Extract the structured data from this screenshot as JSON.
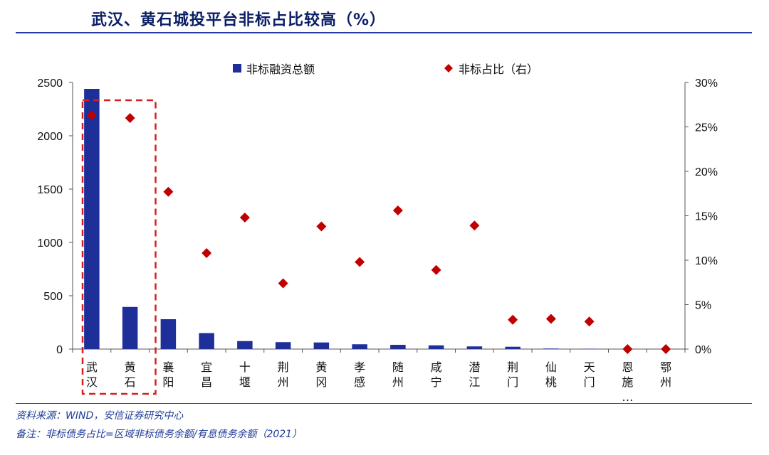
{
  "header": {
    "title": "武汉、黄石城投平台非标占比较高（%）"
  },
  "footer": {
    "source": "资料来源：WIND，安信证券研究中心",
    "note": "备注：非标债务占比=区域非标债务余额/有息债务余额（2021）"
  },
  "colors": {
    "bar": "#1f2f9a",
    "marker": "#c00000",
    "highlight_box": "#d42020",
    "rule": "#1f3d99"
  },
  "chart_data": {
    "type": "bar",
    "categories": [
      "武汉",
      "黄石",
      "襄阳",
      "宜昌",
      "十堰",
      "荆州",
      "黄冈",
      "孝感",
      "随州",
      "咸宁",
      "潜江",
      "荆门",
      "仙桃",
      "天门",
      "恩施…",
      "鄂州"
    ],
    "category_lines": [
      [
        "武",
        "汉"
      ],
      [
        "黄",
        "石"
      ],
      [
        "襄",
        "阳"
      ],
      [
        "宜",
        "昌"
      ],
      [
        "十",
        "堰"
      ],
      [
        "荆",
        "州"
      ],
      [
        "黄",
        "冈"
      ],
      [
        "孝",
        "感"
      ],
      [
        "随",
        "州"
      ],
      [
        "咸",
        "宁"
      ],
      [
        "潜",
        "江"
      ],
      [
        "荆",
        "门"
      ],
      [
        "仙",
        "桃"
      ],
      [
        "天",
        "门"
      ],
      [
        "恩",
        "施",
        "…"
      ],
      [
        "鄂",
        "州"
      ]
    ],
    "series": [
      {
        "name": "非标融资总额",
        "kind": "bar",
        "axis": "left",
        "values": [
          2440,
          395,
          280,
          150,
          75,
          65,
          62,
          45,
          40,
          35,
          25,
          22,
          5,
          3,
          0,
          0
        ]
      },
      {
        "name": "非标占比（右）",
        "kind": "scatter",
        "axis": "right",
        "values": [
          26.3,
          26.0,
          17.7,
          10.8,
          14.8,
          7.4,
          13.8,
          9.8,
          15.6,
          8.9,
          13.9,
          3.3,
          3.4,
          3.1,
          0.0,
          0.0
        ]
      }
    ],
    "y_left": {
      "min": 0,
      "max": 2500,
      "ticks": [
        "0",
        "500",
        "1000",
        "1500",
        "2000",
        "2500"
      ]
    },
    "y_right": {
      "min": 0,
      "max": 30,
      "ticks": [
        "0%",
        "5%",
        "10%",
        "15%",
        "20%",
        "25%",
        "30%"
      ]
    },
    "legend_position": "top",
    "highlight_categories": [
      "武汉",
      "黄石"
    ],
    "grid": false
  }
}
